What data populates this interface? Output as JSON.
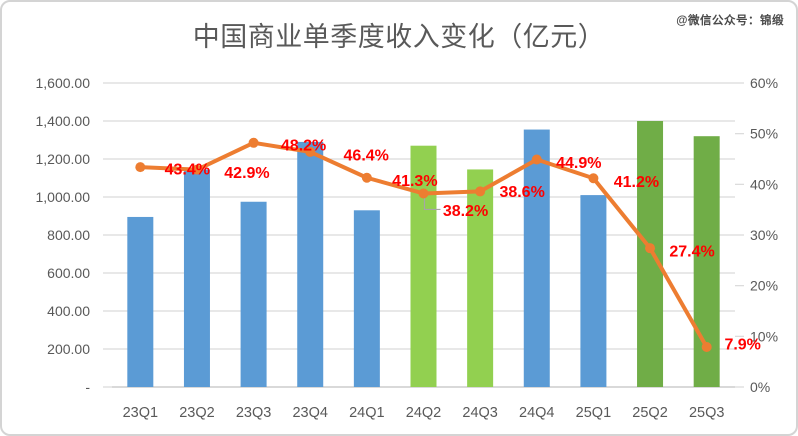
{
  "header": {
    "title": "中国商业单季度收入变化（亿元）",
    "watermark": "@微信公众号：锦缎"
  },
  "chart_data": {
    "type": "bar",
    "subtype": "combo_bar_line_dual_axis",
    "title": "中国商业单季度收入变化（亿元）",
    "categories": [
      "23Q1",
      "23Q2",
      "23Q3",
      "23Q4",
      "24Q1",
      "24Q2",
      "24Q3",
      "24Q4",
      "25Q1",
      "25Q2",
      "25Q3"
    ],
    "series": [
      {
        "name": "bar-revenue",
        "type": "bar",
        "axis": "left",
        "values": [
          895,
          1145,
          975,
          1290,
          930,
          1270,
          1145,
          1355,
          1010,
          1400,
          1320
        ],
        "colors": [
          "#5B9BD5",
          "#5B9BD5",
          "#5B9BD5",
          "#5B9BD5",
          "#5B9BD5",
          "#92D050",
          "#92D050",
          "#5B9BD5",
          "#5B9BD5",
          "#70AD47",
          "#70AD47"
        ]
      },
      {
        "name": "line-percentage",
        "type": "line",
        "axis": "right",
        "values": [
          43.4,
          42.9,
          48.2,
          46.4,
          41.3,
          38.2,
          38.6,
          44.9,
          41.2,
          27.4,
          7.9
        ],
        "labels": [
          "43.4%",
          "42.9%",
          "48.2%",
          "46.4%",
          "41.3%",
          "38.2%",
          "38.6%",
          "44.9%",
          "41.2%",
          "27.4%",
          "7.9%"
        ],
        "color": "#ED7D31",
        "label_color": "#FF0000"
      }
    ],
    "left_axis": {
      "min": 0,
      "max": 1600,
      "step": 200,
      "tick_labels": [
        "1,600.00",
        "1,400.00",
        "1,200.00",
        "1,000.00",
        "800.00",
        "600.00",
        "400.00",
        "200.00",
        "-"
      ]
    },
    "right_axis": {
      "min": 0,
      "max": 60,
      "step": 10,
      "unit": "%",
      "tick_labels": [
        "60%",
        "50%",
        "40%",
        "30%",
        "20%",
        "10%",
        "0%"
      ]
    },
    "grid": true,
    "legend": false,
    "gridline_color": "#D9D9D9",
    "axis_text_color": "#595959"
  }
}
